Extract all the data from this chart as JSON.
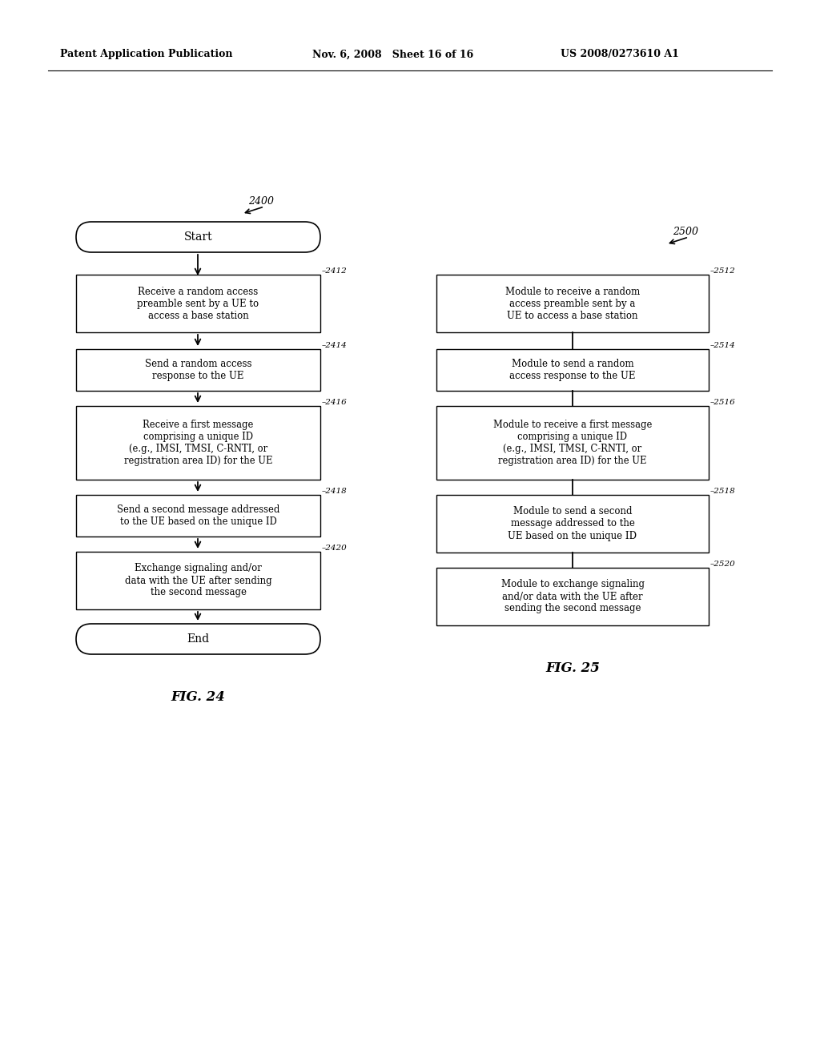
{
  "header_left": "Patent Application Publication",
  "header_mid": "Nov. 6, 2008   Sheet 16 of 16",
  "header_right": "US 2008/0273610 A1",
  "bg_color": "#ffffff",
  "fig24_label": "2400",
  "fig25_label": "2500",
  "fig24_caption": "FIG. 24",
  "fig25_caption": "FIG. 25",
  "start_text": "Start",
  "end_text": "End",
  "left_boxes": [
    {
      "id": "2412",
      "text": "Receive a random access\npreamble sent by a UE to\naccess a base station",
      "lines": 3
    },
    {
      "id": "2414",
      "text": "Send a random access\nresponse to the UE",
      "lines": 2
    },
    {
      "id": "2416",
      "text": "Receive a first message\ncomprising a unique ID\n(e.g., IMSI, TMSI, C-RNTI, or\nregistration area ID) for the UE",
      "lines": 4
    },
    {
      "id": "2418",
      "text": "Send a second message addressed\nto the UE based on the unique ID",
      "lines": 2
    },
    {
      "id": "2420",
      "text": "Exchange signaling and/or\ndata with the UE after sending\nthe second message",
      "lines": 3
    }
  ],
  "right_boxes": [
    {
      "id": "2512",
      "text": "Module to receive a random\naccess preamble sent by a\nUE to access a base station",
      "lines": 3
    },
    {
      "id": "2514",
      "text": "Module to send a random\naccess response to the UE",
      "lines": 2
    },
    {
      "id": "2516",
      "text": "Module to receive a first message\ncomprising a unique ID\n(e.g., IMSI, TMSI, C-RNTI, or\nregistration area ID) for the UE",
      "lines": 4
    },
    {
      "id": "2518",
      "text": "Module to send a second\nmessage addressed to the\nUE based on the unique ID",
      "lines": 3
    },
    {
      "id": "2520",
      "text": "Module to exchange signaling\nand/or data with the UE after\nsending the second message",
      "lines": 3
    }
  ]
}
